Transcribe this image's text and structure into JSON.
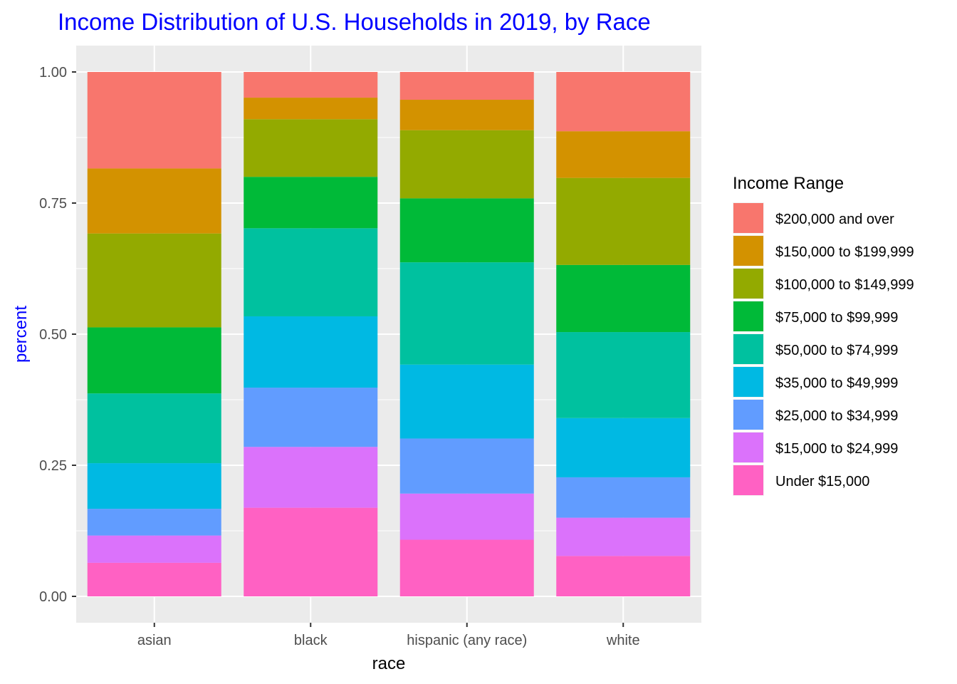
{
  "chart_data": {
    "type": "bar",
    "stacked": true,
    "title": "Income Distribution of U.S. Households in 2019, by Race",
    "xlabel": "race",
    "ylabel": "percent",
    "ylim": [
      0,
      1
    ],
    "yticks": [
      "0.00",
      "0.25",
      "0.50",
      "0.75",
      "1.00"
    ],
    "grid": true,
    "legend_position": "right",
    "legend_title": "Income Range",
    "categories": [
      "asian",
      "black",
      "hispanic (any race)",
      "white"
    ],
    "series": [
      {
        "name": "Under $15,000",
        "color": "#ff61c3",
        "values": [
          0.064,
          0.169,
          0.108,
          0.077
        ]
      },
      {
        "name": "$15,000 to $24,999",
        "color": "#db72fb",
        "values": [
          0.052,
          0.116,
          0.088,
          0.073
        ]
      },
      {
        "name": "$25,000 to $34,999",
        "color": "#619cff",
        "values": [
          0.051,
          0.113,
          0.105,
          0.077
        ]
      },
      {
        "name": "$35,000 to $49,999",
        "color": "#00b9e3",
        "values": [
          0.087,
          0.136,
          0.141,
          0.113
        ]
      },
      {
        "name": "$50,000 to $74,999",
        "color": "#00c19f",
        "values": [
          0.133,
          0.168,
          0.195,
          0.164
        ]
      },
      {
        "name": "$75,000 to $99,999",
        "color": "#00ba38",
        "values": [
          0.126,
          0.098,
          0.122,
          0.128
        ]
      },
      {
        "name": "$100,000 to $149,999",
        "color": "#93aa00",
        "values": [
          0.179,
          0.11,
          0.13,
          0.166
        ]
      },
      {
        "name": "$150,000 to $199,999",
        "color": "#d39200",
        "values": [
          0.124,
          0.041,
          0.058,
          0.089
        ]
      },
      {
        "name": "$200,000 and over",
        "color": "#f8766d",
        "values": [
          0.184,
          0.049,
          0.053,
          0.113
        ]
      }
    ]
  }
}
